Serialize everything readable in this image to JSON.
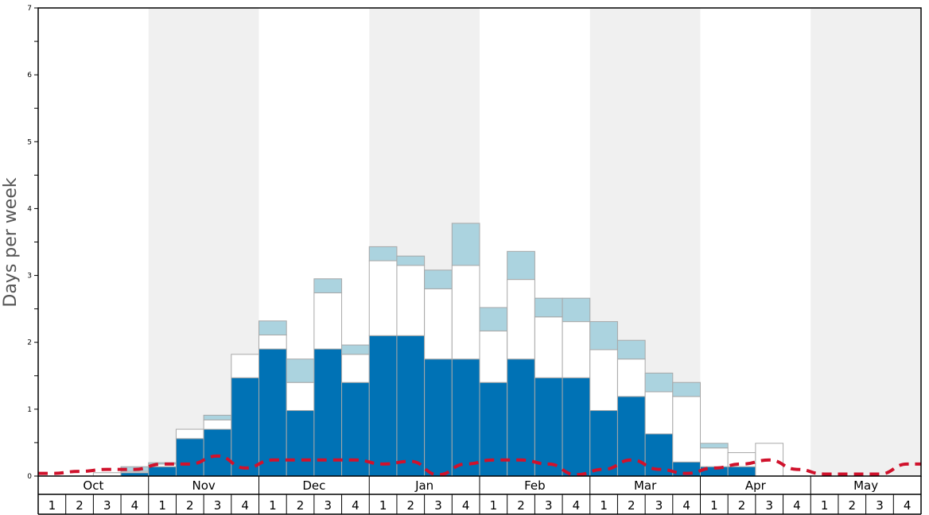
{
  "chart_data": {
    "type": "bar",
    "stacked": true,
    "ylabel": "Days per week",
    "ylim": [
      0,
      7
    ],
    "yticks": [
      "0",
      "1",
      "2",
      "3",
      "4",
      "5",
      "6",
      "7"
    ],
    "months": [
      "Oct",
      "Nov",
      "Dec",
      "Jan",
      "Feb",
      "Mar",
      "Apr",
      "May"
    ],
    "weeks": [
      "1",
      "2",
      "3",
      "4"
    ],
    "grid": false,
    "alternating_month_shading": true,
    "colors": {
      "dark": "#0072b5",
      "white": "#ffffff",
      "light": "#abd3df",
      "line": "#d0122c",
      "shade": "#f0f0f0"
    },
    "series": [
      {
        "color": "dark",
        "values": [
          0,
          0,
          0,
          0.05,
          0.14,
          0.56,
          0.7,
          1.47,
          1.9,
          0.98,
          1.9,
          1.4,
          2.1,
          2.1,
          1.75,
          1.75,
          1.4,
          1.75,
          1.47,
          1.47,
          0.98,
          1.19,
          0.63,
          0.21,
          0.14,
          0.14,
          0,
          0,
          0,
          0,
          0,
          0
        ]
      },
      {
        "color": "white",
        "values": [
          0,
          0,
          0.05,
          0.02,
          0.04,
          0.14,
          0.14,
          0.35,
          0.21,
          0.42,
          0.84,
          0.42,
          1.12,
          1.05,
          1.05,
          1.4,
          0.77,
          1.19,
          0.91,
          0.84,
          0.91,
          0.56,
          0.63,
          0.98,
          0.28,
          0.21,
          0.49,
          0,
          0,
          0,
          0,
          0
        ]
      },
      {
        "color": "light",
        "values": [
          0,
          0,
          0,
          0.07,
          0.02,
          0,
          0.07,
          0,
          0.21,
          0.35,
          0.21,
          0.14,
          0.21,
          0.14,
          0.28,
          0.63,
          0.35,
          0.42,
          0.28,
          0.35,
          0.42,
          0.28,
          0.28,
          0.21,
          0.07,
          0,
          0,
          0,
          0,
          0,
          0,
          0
        ]
      }
    ],
    "line": {
      "style": "dashed",
      "color": "line",
      "values": [
        0.04,
        0.07,
        0.1,
        0.1,
        0.18,
        0.18,
        0.3,
        0.12,
        0.24,
        0.24,
        0.24,
        0.24,
        0.18,
        0.22,
        0.02,
        0.18,
        0.24,
        0.24,
        0.18,
        0.02,
        0.1,
        0.24,
        0.1,
        0.04,
        0.12,
        0.18,
        0.24,
        0.1,
        0.03,
        0.03,
        0.03,
        0.18
      ]
    }
  }
}
